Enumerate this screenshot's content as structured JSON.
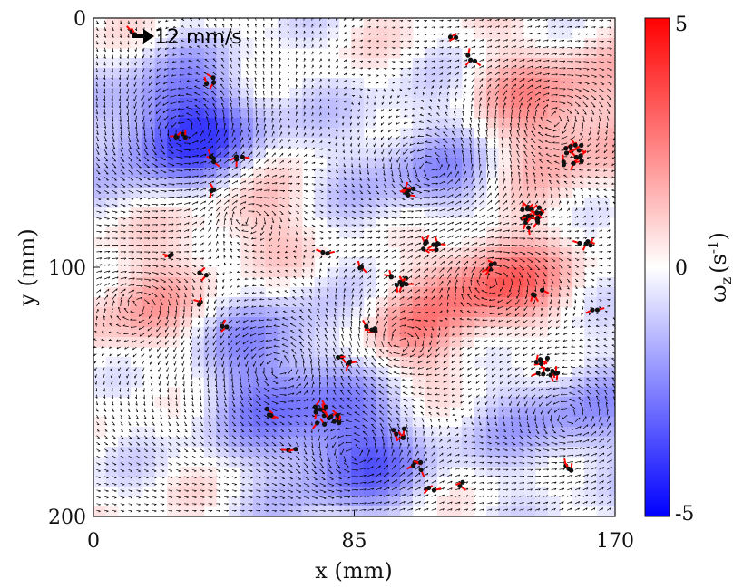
{
  "chart_data": {
    "type": "vector_field",
    "xlabel": "x (mm)",
    "ylabel": "y (mm)",
    "xlim": [
      0,
      170
    ],
    "ylim": [
      0,
      200
    ],
    "y_axis": "inverted",
    "x_ticks": [
      "0",
      "85",
      "170"
    ],
    "y_ticks": [
      "0",
      "100",
      "200"
    ],
    "reference_vector": {
      "label": "12 mm/s",
      "magnitude": 12,
      "units": "mm/s"
    },
    "colorbar": {
      "label_symbol": "ω",
      "label_subscript": "z",
      "label_units": "(s",
      "label_units_exponent": "-1",
      "label_units_close": ")",
      "ticks": [
        "5",
        "0",
        "-5"
      ],
      "range": [
        -5,
        5
      ],
      "colors": {
        "min": "#0000ff",
        "mid": "#ffffff",
        "max": "#ff0000"
      }
    },
    "vortices": [
      {
        "x": 30,
        "y": 45,
        "strength": -1,
        "radius": 18
      },
      {
        "x": 130,
        "y": 105,
        "strength": 0.8,
        "radius": 15
      },
      {
        "x": 85,
        "y": 175,
        "strength": -0.7,
        "radius": 18
      },
      {
        "x": 150,
        "y": 40,
        "strength": 0.6,
        "radius": 20
      },
      {
        "x": 60,
        "y": 140,
        "strength": -0.6,
        "radius": 22
      },
      {
        "x": 110,
        "y": 60,
        "strength": -0.5,
        "radius": 20
      },
      {
        "x": 15,
        "y": 115,
        "strength": 0.4,
        "radius": 18
      },
      {
        "x": 155,
        "y": 160,
        "strength": -0.5,
        "radius": 18
      },
      {
        "x": 100,
        "y": 130,
        "strength": 0.5,
        "radius": 15
      },
      {
        "x": 50,
        "y": 80,
        "strength": 0.4,
        "radius": 15
      }
    ],
    "particle_clusters": [
      {
        "x": 12,
        "y": 6,
        "n": 2
      },
      {
        "x": 38,
        "y": 25,
        "n": 3
      },
      {
        "x": 123,
        "y": 16,
        "n": 3
      },
      {
        "x": 117,
        "y": 8,
        "n": 2
      },
      {
        "x": 28,
        "y": 48,
        "n": 4
      },
      {
        "x": 38,
        "y": 57,
        "n": 3
      },
      {
        "x": 47,
        "y": 56,
        "n": 3
      },
      {
        "x": 40,
        "y": 70,
        "n": 2
      },
      {
        "x": 102,
        "y": 70,
        "n": 6
      },
      {
        "x": 110,
        "y": 90,
        "n": 8
      },
      {
        "x": 100,
        "y": 105,
        "n": 8
      },
      {
        "x": 130,
        "y": 100,
        "n": 4
      },
      {
        "x": 143,
        "y": 80,
        "n": 20
      },
      {
        "x": 155,
        "y": 55,
        "n": 14
      },
      {
        "x": 148,
        "y": 140,
        "n": 12
      },
      {
        "x": 160,
        "y": 90,
        "n": 4
      },
      {
        "x": 90,
        "y": 125,
        "n": 4
      },
      {
        "x": 82,
        "y": 138,
        "n": 5
      },
      {
        "x": 76,
        "y": 160,
        "n": 15
      },
      {
        "x": 58,
        "y": 158,
        "n": 3
      },
      {
        "x": 100,
        "y": 167,
        "n": 5
      },
      {
        "x": 105,
        "y": 180,
        "n": 4
      },
      {
        "x": 110,
        "y": 190,
        "n": 3
      },
      {
        "x": 25,
        "y": 95,
        "n": 2
      },
      {
        "x": 36,
        "y": 102,
        "n": 2
      },
      {
        "x": 35,
        "y": 115,
        "n": 2
      },
      {
        "x": 42,
        "y": 124,
        "n": 2
      },
      {
        "x": 75,
        "y": 93,
        "n": 2
      },
      {
        "x": 88,
        "y": 100,
        "n": 2
      },
      {
        "x": 145,
        "y": 110,
        "n": 3
      },
      {
        "x": 163,
        "y": 118,
        "n": 2
      },
      {
        "x": 155,
        "y": 180,
        "n": 3
      },
      {
        "x": 120,
        "y": 187,
        "n": 2
      },
      {
        "x": 65,
        "y": 172,
        "n": 2
      }
    ]
  }
}
